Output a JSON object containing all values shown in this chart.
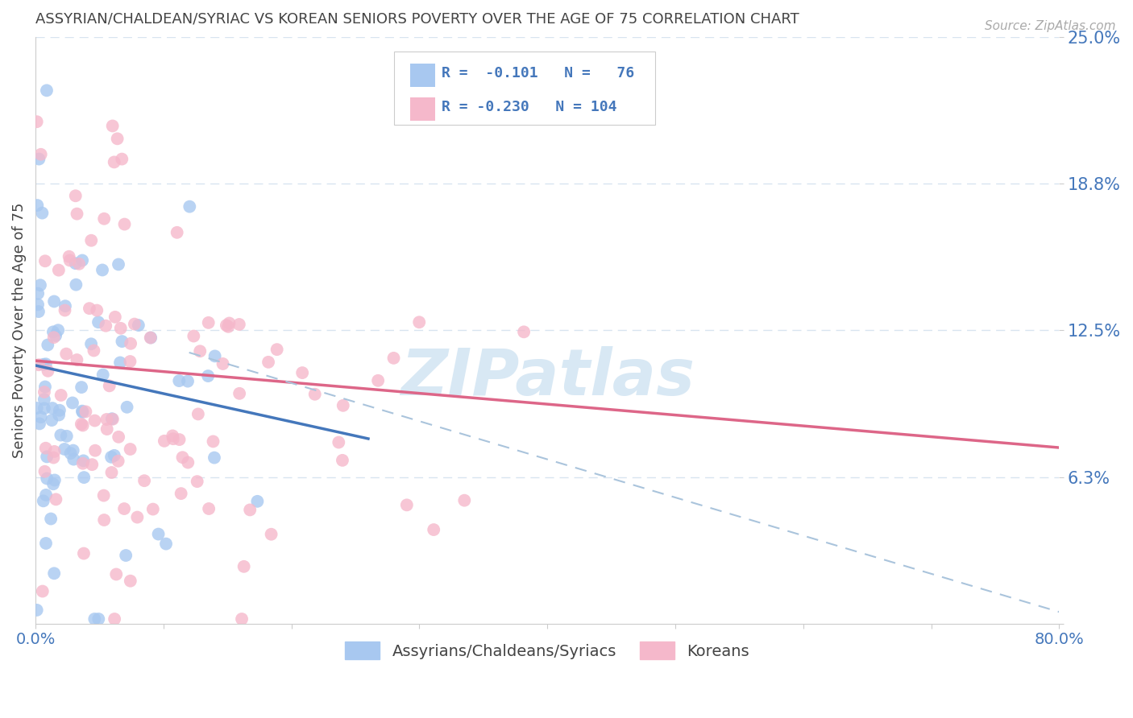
{
  "title": "ASSYRIAN/CHALDEAN/SYRIAC VS KOREAN SENIORS POVERTY OVER THE AGE OF 75 CORRELATION CHART",
  "source": "Source: ZipAtlas.com",
  "ylabel": "Seniors Poverty Over the Age of 75",
  "xlim": [
    0.0,
    0.8
  ],
  "ylim": [
    0.0,
    0.25
  ],
  "yticks": [
    0.0,
    0.0625,
    0.125,
    0.1875,
    0.25
  ],
  "ytick_labels": [
    "",
    "6.3%",
    "12.5%",
    "18.8%",
    "25.0%"
  ],
  "xtick_labels": [
    "0.0%",
    "",
    "",
    "",
    "",
    "",
    "",
    "",
    "80.0%"
  ],
  "legend_r1": "R =  -0.101",
  "legend_n1": "N =   76",
  "legend_r2": "R = -0.230",
  "legend_n2": "N = 104",
  "color_blue": "#a8c8f0",
  "color_pink": "#f5b8cb",
  "color_blue_line": "#4477bb",
  "color_pink_line": "#dd6688",
  "color_dashed": "#aac4dc",
  "background_color": "#ffffff",
  "grid_color": "#d8e4f0",
  "title_color": "#444444",
  "axis_label_color": "#4477bb",
  "watermark_color": "#d8e8f4",
  "source_color": "#aaaaaa"
}
